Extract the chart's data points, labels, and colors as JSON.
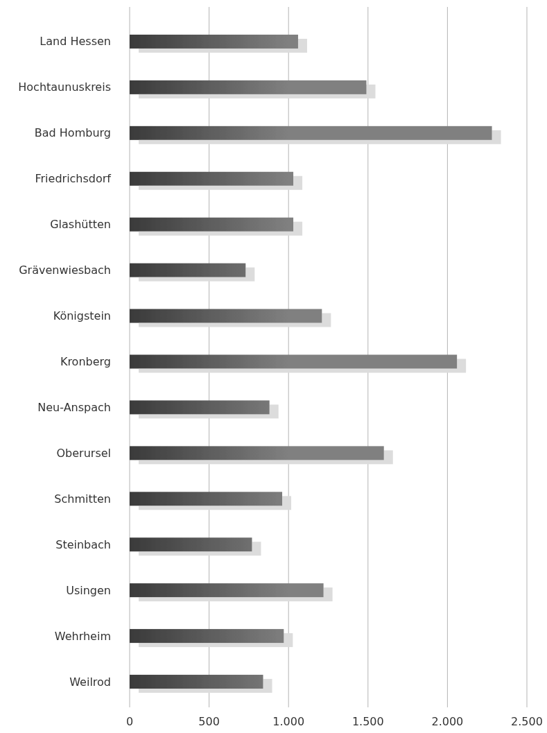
{
  "chart_data": {
    "type": "bar",
    "orientation": "horizontal",
    "categories": [
      "Land Hessen",
      "Hochtaunuskreis",
      "Bad Homburg",
      "Friedrichsdorf",
      "Glashütten",
      "Grävenwiesbach",
      "Königstein",
      "Kronberg",
      "Neu-Anspach",
      "Oberursel",
      "Schmitten",
      "Steinbach",
      "Usingen",
      "Wehrheim",
      "Weilrod"
    ],
    "series": [
      {
        "color": "#808080",
        "values": [
          1060,
          1490,
          2280,
          1030,
          1030,
          730,
          1210,
          2060,
          880,
          1600,
          960,
          770,
          1220,
          970,
          840
        ]
      }
    ],
    "xlim": [
      0,
      2500
    ],
    "xticks": [
      0,
      500,
      {
        "value": 1000,
        "label": "1.000"
      },
      {
        "value": 1500,
        "label": "1.500"
      },
      {
        "value": 2000,
        "label": "2.000"
      },
      {
        "value": 2500,
        "label": "2.500"
      }
    ],
    "grid": "x"
  }
}
